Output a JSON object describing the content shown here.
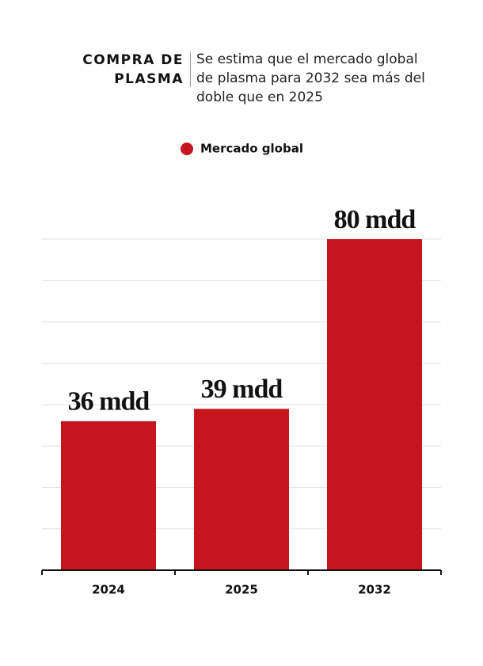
{
  "chart_data": {
    "type": "bar",
    "title": "COMPRA DE PLASMA",
    "subtitle": "Se estima que el mercado global de plasma para 2032 sea más del doble que en 2025",
    "categories": [
      "2024",
      "2025",
      "2032"
    ],
    "series": [
      {
        "name": "Mercado global",
        "color": "#c4161c",
        "values": [
          36,
          39,
          80
        ],
        "value_labels": [
          "36 mdd",
          "39 mdd",
          "80 mdd"
        ]
      }
    ],
    "ylim": [
      0,
      80
    ],
    "yticks": [
      0,
      10,
      20,
      30,
      40,
      50,
      60,
      70,
      80
    ],
    "grid": true
  }
}
